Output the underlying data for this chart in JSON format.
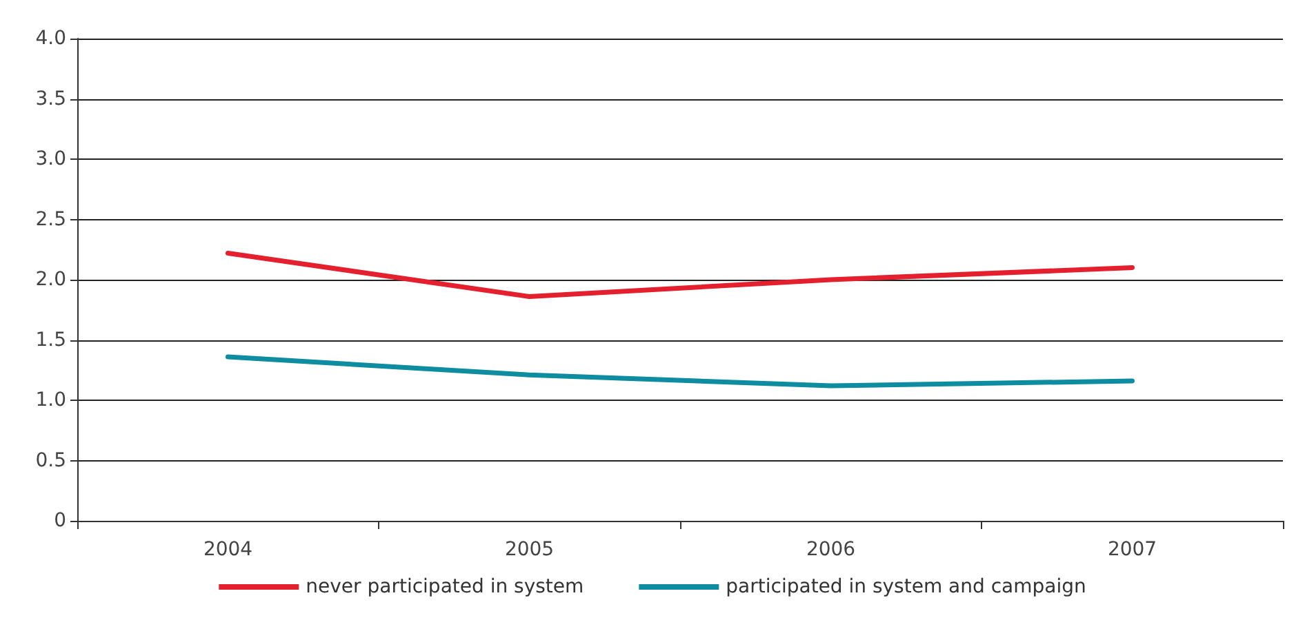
{
  "chart_data": {
    "type": "line",
    "categories": [
      "2004",
      "2005",
      "2006",
      "2007"
    ],
    "series": [
      {
        "name": "never participated in system",
        "color": "#e5202e",
        "values": [
          2.22,
          1.86,
          2.0,
          2.1
        ]
      },
      {
        "name": "participated in system and campaign",
        "color": "#0e8ca0",
        "values": [
          1.36,
          1.21,
          1.12,
          1.16
        ]
      }
    ],
    "ylim": [
      0,
      4
    ],
    "yticks": [
      0,
      {
        "value": 0.5,
        "label": "0.5"
      },
      {
        "value": 1,
        "label": "1.0"
      },
      {
        "value": 1.5,
        "label": "1.5"
      },
      {
        "value": 2,
        "label": "2.0"
      },
      {
        "value": 2.5,
        "label": "2.5"
      },
      {
        "value": 3,
        "label": "3.0"
      },
      {
        "value": 3.5,
        "label": "3.5"
      },
      {
        "value": 4,
        "label": "4.0"
      }
    ],
    "grid": "y",
    "legend": "bottom",
    "marker": "none",
    "line_style": "solid"
  }
}
